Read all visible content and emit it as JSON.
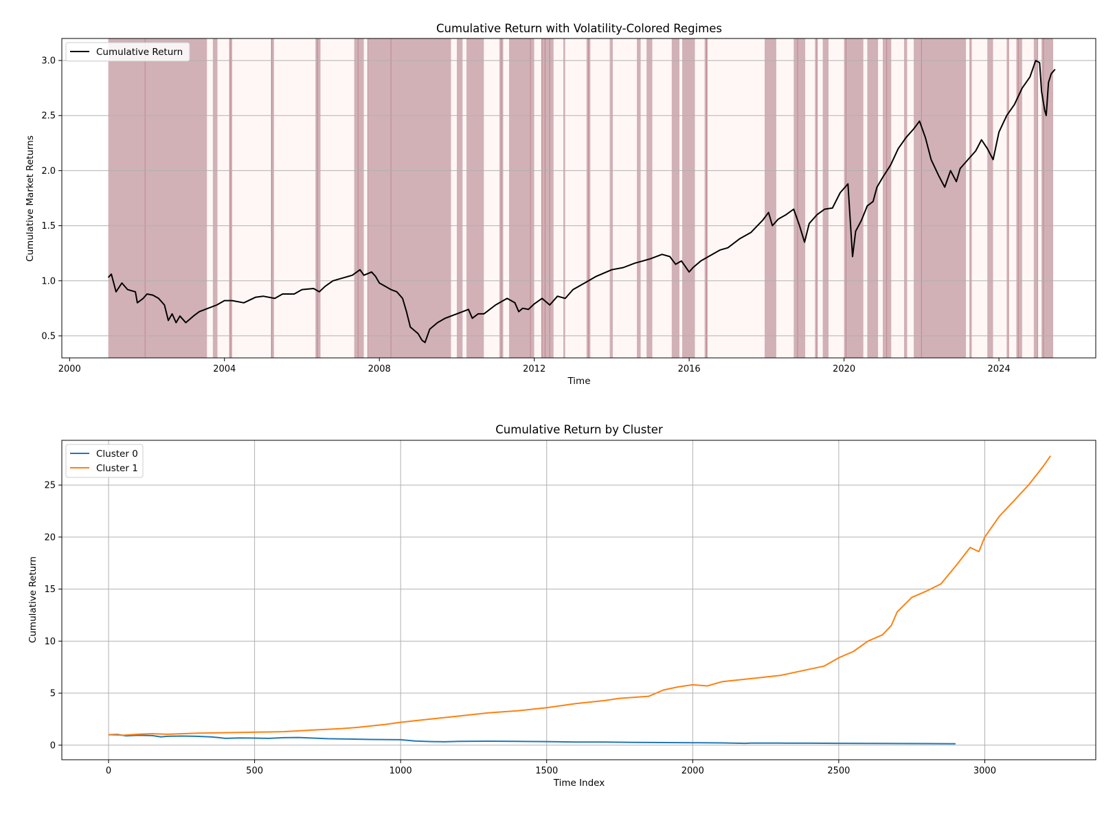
{
  "chart_data": [
    {
      "type": "line",
      "title": "Cumulative Return with Volatility-Colored Regimes",
      "xlabel": "Time",
      "ylabel": "Cumulative Market Returns",
      "xlim": [
        1999.8,
        2026.5
      ],
      "ylim": [
        0.3,
        3.2
      ],
      "x_ticks": [
        2000,
        2004,
        2008,
        2012,
        2016,
        2020,
        2024
      ],
      "x_tick_labels": [
        "2000",
        "2004",
        "2008",
        "2012",
        "2016",
        "2020",
        "2024"
      ],
      "y_ticks": [
        0.5,
        1.0,
        1.5,
        2.0,
        2.5,
        3.0
      ],
      "y_tick_labels": [
        "0.5",
        "1.0",
        "1.5",
        "2.0",
        "2.5",
        "3.0"
      ],
      "grid": "y",
      "legend": "top-left",
      "regime_colors": {
        "high": "#d1b1b6",
        "low": "#fff7f5",
        "line": "#b5737c"
      },
      "series": [
        {
          "name": "Cumulative Return",
          "color": "#000000",
          "x": [
            2001.0,
            2001.08,
            2001.2,
            2001.35,
            2001.5,
            2001.7,
            2001.75,
            2001.9,
            2002.0,
            2002.15,
            2002.3,
            2002.45,
            2002.55,
            2002.65,
            2002.75,
            2002.85,
            2003.0,
            2003.2,
            2003.35,
            2003.5,
            2003.8,
            2004.0,
            2004.2,
            2004.5,
            2004.8,
            2005.0,
            2005.3,
            2005.5,
            2005.8,
            2006.0,
            2006.3,
            2006.45,
            2006.6,
            2006.8,
            2007.0,
            2007.3,
            2007.5,
            2007.6,
            2007.8,
            2007.9,
            2008.0,
            2008.15,
            2008.3,
            2008.45,
            2008.6,
            2008.7,
            2008.8,
            2008.9,
            2009.0,
            2009.1,
            2009.18,
            2009.3,
            2009.5,
            2009.7,
            2010.0,
            2010.3,
            2010.4,
            2010.55,
            2010.7,
            2011.0,
            2011.3,
            2011.5,
            2011.6,
            2011.7,
            2011.85,
            2012.0,
            2012.2,
            2012.4,
            2012.6,
            2012.8,
            2013.0,
            2013.3,
            2013.6,
            2014.0,
            2014.3,
            2014.6,
            2014.8,
            2015.0,
            2015.3,
            2015.5,
            2015.65,
            2015.8,
            2016.0,
            2016.1,
            2016.3,
            2016.6,
            2016.8,
            2017.0,
            2017.3,
            2017.6,
            2017.9,
            2018.05,
            2018.15,
            2018.3,
            2018.5,
            2018.7,
            2018.85,
            2018.98,
            2019.1,
            2019.3,
            2019.5,
            2019.7,
            2019.9,
            2020.1,
            2020.15,
            2020.22,
            2020.3,
            2020.45,
            2020.6,
            2020.75,
            2020.85,
            2021.0,
            2021.2,
            2021.4,
            2021.6,
            2021.8,
            2021.95,
            2022.1,
            2022.25,
            2022.45,
            2022.6,
            2022.75,
            2022.9,
            2023.0,
            2023.2,
            2023.4,
            2023.55,
            2023.7,
            2023.85,
            2024.0,
            2024.2,
            2024.4,
            2024.6,
            2024.8,
            2024.95,
            2025.05,
            2025.1,
            2025.18,
            2025.22,
            2025.28,
            2025.35,
            2025.45
          ],
          "y": [
            1.03,
            1.06,
            0.9,
            0.98,
            0.92,
            0.9,
            0.8,
            0.84,
            0.88,
            0.87,
            0.84,
            0.78,
            0.64,
            0.7,
            0.62,
            0.68,
            0.62,
            0.68,
            0.72,
            0.74,
            0.78,
            0.82,
            0.82,
            0.8,
            0.85,
            0.86,
            0.84,
            0.88,
            0.88,
            0.92,
            0.93,
            0.9,
            0.95,
            1.0,
            1.02,
            1.05,
            1.1,
            1.05,
            1.08,
            1.04,
            0.98,
            0.95,
            0.92,
            0.9,
            0.84,
            0.72,
            0.58,
            0.55,
            0.52,
            0.46,
            0.44,
            0.56,
            0.62,
            0.66,
            0.7,
            0.74,
            0.66,
            0.7,
            0.7,
            0.78,
            0.84,
            0.8,
            0.72,
            0.75,
            0.74,
            0.79,
            0.84,
            0.78,
            0.86,
            0.84,
            0.92,
            0.98,
            1.04,
            1.1,
            1.12,
            1.16,
            1.18,
            1.2,
            1.24,
            1.22,
            1.15,
            1.18,
            1.08,
            1.12,
            1.18,
            1.24,
            1.28,
            1.3,
            1.38,
            1.44,
            1.55,
            1.62,
            1.5,
            1.56,
            1.6,
            1.65,
            1.5,
            1.35,
            1.52,
            1.6,
            1.65,
            1.66,
            1.8,
            1.88,
            1.6,
            1.22,
            1.45,
            1.55,
            1.68,
            1.72,
            1.85,
            1.94,
            2.05,
            2.2,
            2.3,
            2.38,
            2.45,
            2.3,
            2.1,
            1.95,
            1.85,
            2.0,
            1.9,
            2.02,
            2.1,
            2.18,
            2.28,
            2.2,
            2.1,
            2.35,
            2.5,
            2.6,
            2.75,
            2.85,
            3.0,
            2.98,
            2.72,
            2.55,
            2.5,
            2.8,
            2.88,
            2.92
          ]
        }
      ],
      "regimes": [
        [
          2001.0,
          2003.55,
          "high"
        ],
        [
          2003.55,
          2003.7,
          "low"
        ],
        [
          2003.7,
          2003.82,
          "high"
        ],
        [
          2003.82,
          2004.12,
          "low"
        ],
        [
          2004.12,
          2004.2,
          "high"
        ],
        [
          2004.2,
          2005.2,
          "low"
        ],
        [
          2005.2,
          2005.28,
          "high"
        ],
        [
          2005.28,
          2006.35,
          "low"
        ],
        [
          2006.35,
          2006.48,
          "high"
        ],
        [
          2006.48,
          2007.35,
          "low"
        ],
        [
          2007.35,
          2007.6,
          "high"
        ],
        [
          2007.6,
          2007.7,
          "low"
        ],
        [
          2007.7,
          2009.85,
          "high"
        ],
        [
          2009.85,
          2010.0,
          "low"
        ],
        [
          2010.0,
          2010.15,
          "high"
        ],
        [
          2010.15,
          2010.25,
          "low"
        ],
        [
          2010.25,
          2010.7,
          "high"
        ],
        [
          2010.7,
          2011.1,
          "low"
        ],
        [
          2011.1,
          2011.2,
          "high"
        ],
        [
          2011.2,
          2011.35,
          "low"
        ],
        [
          2011.35,
          2012.0,
          "high"
        ],
        [
          2012.0,
          2012.18,
          "low"
        ],
        [
          2012.18,
          2012.5,
          "high"
        ],
        [
          2012.5,
          2012.75,
          "low"
        ],
        [
          2012.75,
          2012.8,
          "high"
        ],
        [
          2012.8,
          2013.35,
          "low"
        ],
        [
          2013.35,
          2013.45,
          "high"
        ],
        [
          2013.45,
          2013.95,
          "low"
        ],
        [
          2013.95,
          2014.03,
          "high"
        ],
        [
          2014.03,
          2014.65,
          "low"
        ],
        [
          2014.65,
          2014.75,
          "high"
        ],
        [
          2014.75,
          2014.9,
          "low"
        ],
        [
          2014.9,
          2015.05,
          "high"
        ],
        [
          2015.05,
          2015.55,
          "low"
        ],
        [
          2015.55,
          2015.75,
          "high"
        ],
        [
          2015.75,
          2015.82,
          "low"
        ],
        [
          2015.82,
          2016.15,
          "high"
        ],
        [
          2016.15,
          2016.4,
          "low"
        ],
        [
          2016.4,
          2016.48,
          "high"
        ],
        [
          2016.48,
          2017.95,
          "low"
        ],
        [
          2017.95,
          2018.25,
          "high"
        ],
        [
          2018.25,
          2018.7,
          "low"
        ],
        [
          2018.7,
          2019.0,
          "high"
        ],
        [
          2019.0,
          2019.25,
          "low"
        ],
        [
          2019.25,
          2019.32,
          "high"
        ],
        [
          2019.32,
          2019.45,
          "low"
        ],
        [
          2019.45,
          2019.6,
          "high"
        ],
        [
          2019.6,
          2020.0,
          "low"
        ],
        [
          2020.0,
          2020.5,
          "high"
        ],
        [
          2020.5,
          2020.6,
          "low"
        ],
        [
          2020.6,
          2020.88,
          "high"
        ],
        [
          2020.88,
          2021.0,
          "low"
        ],
        [
          2021.0,
          2021.22,
          "high"
        ],
        [
          2021.22,
          2021.55,
          "low"
        ],
        [
          2021.55,
          2021.63,
          "high"
        ],
        [
          2021.63,
          2021.8,
          "low"
        ],
        [
          2021.8,
          2023.15,
          "high"
        ],
        [
          2023.15,
          2023.25,
          "low"
        ],
        [
          2023.25,
          2023.3,
          "high"
        ],
        [
          2023.3,
          2023.7,
          "low"
        ],
        [
          2023.7,
          2023.85,
          "high"
        ],
        [
          2023.85,
          2024.2,
          "low"
        ],
        [
          2024.2,
          2024.25,
          "high"
        ],
        [
          2024.25,
          2024.45,
          "low"
        ],
        [
          2024.45,
          2024.6,
          "high"
        ],
        [
          2024.6,
          2024.9,
          "low"
        ],
        [
          2024.9,
          2025.0,
          "high"
        ],
        [
          2025.0,
          2025.1,
          "low"
        ],
        [
          2025.1,
          2025.4,
          "high"
        ]
      ],
      "regime_lines": [
        2001.95,
        2004.15,
        2005.22,
        2006.4,
        2007.45,
        2007.7,
        2008.3,
        2011.15,
        2011.9,
        2012.2,
        2012.28,
        2012.4,
        2013.4,
        2016.45,
        2018.8,
        2019.3,
        2020.05,
        2021.1,
        2022.0,
        2023.25,
        2024.25,
        2024.5,
        2025.0,
        2025.15
      ]
    },
    {
      "type": "line",
      "title": "Cumulative Return by Cluster",
      "xlabel": "Time Index",
      "ylabel": "Cumulative Return",
      "xlim": [
        -160,
        3380
      ],
      "ylim": [
        -1.4,
        29.3
      ],
      "x_ticks": [
        0,
        500,
        1000,
        1500,
        2000,
        2500,
        3000
      ],
      "x_tick_labels": [
        "0",
        "500",
        "1000",
        "1500",
        "2000",
        "2500",
        "3000"
      ],
      "y_ticks": [
        0,
        5,
        10,
        15,
        20,
        25
      ],
      "y_tick_labels": [
        "0",
        "5",
        "10",
        "15",
        "20",
        "25"
      ],
      "grid": "both",
      "legend": "top-left",
      "series": [
        {
          "name": "Cluster 0",
          "color": "#1f77b4",
          "x": [
            0,
            30,
            60,
            100,
            150,
            180,
            200,
            250,
            300,
            350,
            380,
            400,
            450,
            500,
            550,
            600,
            650,
            700,
            750,
            800,
            900,
            1000,
            1050,
            1100,
            1150,
            1200,
            1300,
            1400,
            1500,
            1600,
            1700,
            1800,
            1900,
            2000,
            2100,
            2180,
            2200,
            2300,
            2400,
            2500,
            2600,
            2700,
            2800,
            2900
          ],
          "y": [
            1.0,
            1.02,
            0.9,
            0.95,
            0.92,
            0.8,
            0.85,
            0.88,
            0.85,
            0.8,
            0.72,
            0.65,
            0.7,
            0.68,
            0.65,
            0.72,
            0.74,
            0.68,
            0.62,
            0.6,
            0.55,
            0.52,
            0.4,
            0.35,
            0.32,
            0.36,
            0.38,
            0.36,
            0.34,
            0.3,
            0.3,
            0.27,
            0.25,
            0.24,
            0.22,
            0.18,
            0.2,
            0.2,
            0.19,
            0.18,
            0.17,
            0.16,
            0.15,
            0.14
          ]
        },
        {
          "name": "Cluster 1",
          "color": "#ff7f0e",
          "x": [
            0,
            50,
            100,
            150,
            200,
            250,
            300,
            400,
            500,
            600,
            700,
            800,
            850,
            900,
            950,
            1000,
            1100,
            1200,
            1300,
            1400,
            1500,
            1550,
            1600,
            1700,
            1750,
            1800,
            1850,
            1900,
            1950,
            2000,
            2050,
            2100,
            2200,
            2300,
            2400,
            2450,
            2500,
            2550,
            2600,
            2650,
            2680,
            2700,
            2750,
            2800,
            2850,
            2900,
            2950,
            2980,
            3000,
            3050,
            3100,
            3150,
            3200,
            3225
          ],
          "y": [
            1.0,
            0.95,
            1.05,
            1.1,
            1.05,
            1.1,
            1.15,
            1.2,
            1.25,
            1.3,
            1.45,
            1.6,
            1.7,
            1.85,
            2.0,
            2.2,
            2.5,
            2.8,
            3.1,
            3.3,
            3.6,
            3.8,
            4.0,
            4.3,
            4.5,
            4.6,
            4.7,
            5.3,
            5.6,
            5.8,
            5.7,
            6.1,
            6.4,
            6.7,
            7.3,
            7.6,
            8.4,
            9.0,
            10.0,
            10.6,
            11.5,
            12.8,
            14.2,
            14.8,
            15.5,
            17.2,
            19.0,
            18.6,
            20.0,
            22.0,
            23.5,
            25.0,
            26.8,
            27.8
          ]
        }
      ]
    }
  ]
}
